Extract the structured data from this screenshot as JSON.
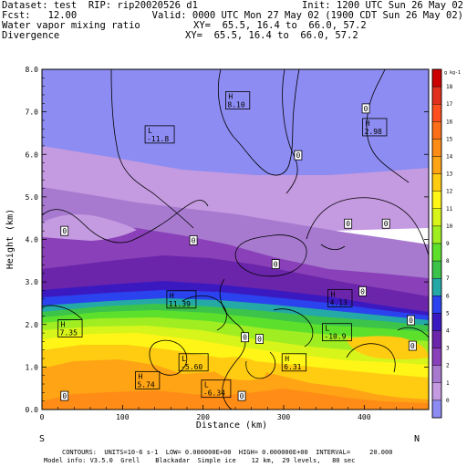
{
  "header": {
    "line1_left": "Dataset: test  RIP: rip20020526 d1",
    "line1_right": "Init: 1200 UTC Sun 26 May 02",
    "line2_left": "Fcst:   12.00",
    "line2_right": "Valid: 0000 UTC Mon 27 May 02 (1900 CDT Sun 26 May 02)",
    "line3_left": "Water vapor mixing ratio",
    "line3_right": "XY=  65.5, 16.4 to  66.0, 57.2",
    "line4_left": "Divergence",
    "line4_right": "XY=  65.5, 16.4 to  66.0, 57.2"
  },
  "footer": {
    "line1": "CONTOURS:  UNITS=10-6 s-1  LOW= 0.000000E+00  HIGH= 0.000000E+00  INTERVAL=     20.000",
    "line2": "Model info: V3.5.0  Grell    Blackadar  Simple ice    12 km,  29 levels,   80 sec"
  },
  "chart_data": {
    "type": "heatmap",
    "xlabel": "Distance (km)",
    "ylabel": "Height (km)",
    "xlim": [
      0,
      480
    ],
    "ylim": [
      0.0,
      8.0
    ],
    "x_ticks": [
      0,
      100,
      200,
      300,
      400
    ],
    "y_ticks": [
      "0.0",
      "1.0",
      "2.0",
      "3.0",
      "4.0",
      "5.0",
      "6.0",
      "7.0",
      "8.0"
    ],
    "endpoint_left": "S",
    "endpoint_right": "N",
    "colorbar": {
      "unit": "g kg-1",
      "levels": [
        "18",
        "17",
        "16",
        "15",
        "14",
        "13",
        "12",
        "11",
        "10",
        "9",
        "8",
        "7",
        "6",
        "5",
        "4",
        "3",
        "2",
        "1",
        "0"
      ],
      "colors": [
        "#cc0000",
        "#e0301e",
        "#ff4f1f",
        "#ff6e18",
        "#ff8c16",
        "#ffa415",
        "#ffcc12",
        "#fff516",
        "#d7f51a",
        "#a0ee22",
        "#5de02c",
        "#3cc34a",
        "#24a9a6",
        "#2a43ee",
        "#3b19c0",
        "#6a25ab",
        "#8a40b8",
        "#a77ad0",
        "#c49ae0",
        "#8d8cf2"
      ]
    },
    "field_labels": [
      {
        "type": "H",
        "value": "8.10",
        "x": 228,
        "y": 7.28
      },
      {
        "type": "H",
        "value": "2.98",
        "x": 398,
        "y": 6.65
      },
      {
        "type": "L",
        "value": "-11.8",
        "x": 128,
        "y": 6.48
      },
      {
        "type": "H",
        "value": "11.39",
        "x": 155,
        "y": 2.6
      },
      {
        "type": "H",
        "value": "4.13",
        "x": 355,
        "y": 2.63
      },
      {
        "type": "H",
        "value": "7.35",
        "x": 20,
        "y": 1.92
      },
      {
        "type": "L",
        "value": "-10.9",
        "x": 348,
        "y": 1.83
      },
      {
        "type": "L",
        "value": "-5.60",
        "x": 170,
        "y": 1.12
      },
      {
        "type": "H",
        "value": "6.31",
        "x": 298,
        "y": 1.12
      },
      {
        "type": "H",
        "value": "5.74",
        "x": 116,
        "y": 0.7
      },
      {
        "type": "L",
        "value": "-6.34",
        "x": 198,
        "y": 0.5
      }
    ],
    "zero_markers": [
      {
        "x": 28,
        "y": 4.2
      },
      {
        "x": 188,
        "y": 3.98
      },
      {
        "x": 402,
        "y": 7.08
      },
      {
        "x": 318,
        "y": 5.98
      },
      {
        "x": 380,
        "y": 4.37
      },
      {
        "x": 427,
        "y": 4.37
      },
      {
        "x": 290,
        "y": 3.42
      },
      {
        "x": 398,
        "y": 2.78
      },
      {
        "x": 458,
        "y": 2.1
      },
      {
        "x": 460,
        "y": 1.5
      },
      {
        "x": 252,
        "y": 1.7
      },
      {
        "x": 270,
        "y": 1.66
      },
      {
        "x": 248,
        "y": 0.32
      },
      {
        "x": 28,
        "y": 0.32
      }
    ]
  }
}
